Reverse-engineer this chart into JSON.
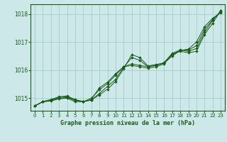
{
  "title": "Graphe pression niveau de la mer (hPa)",
  "background_color": "#cce8e8",
  "grid_color": "#aacccc",
  "line_color": "#1a5c1a",
  "marker_color": "#1a5c1a",
  "xlim": [
    -0.5,
    23.5
  ],
  "ylim": [
    1014.55,
    1018.35
  ],
  "yticks": [
    1015,
    1016,
    1017,
    1018
  ],
  "xticks": [
    0,
    1,
    2,
    3,
    4,
    5,
    6,
    7,
    8,
    9,
    10,
    11,
    12,
    13,
    14,
    15,
    16,
    17,
    18,
    19,
    20,
    21,
    22,
    23
  ],
  "series": [
    [
      1014.72,
      1014.88,
      1014.95,
      1015.05,
      1015.08,
      1014.95,
      1014.88,
      1014.93,
      1015.12,
      1015.32,
      1015.6,
      1016.05,
      1016.55,
      1016.45,
      1016.15,
      1016.2,
      1016.25,
      1016.5,
      1016.7,
      1016.75,
      1017.0,
      1017.55,
      1017.85,
      1018.05
    ],
    [
      1014.72,
      1014.88,
      1014.93,
      1015.02,
      1015.05,
      1014.93,
      1014.88,
      1014.93,
      1015.17,
      1015.42,
      1015.67,
      1016.1,
      1016.45,
      1016.35,
      1016.12,
      1016.17,
      1016.25,
      1016.55,
      1016.7,
      1016.72,
      1016.87,
      1017.45,
      1017.8,
      1018.08
    ],
    [
      1014.72,
      1014.87,
      1014.92,
      1015.0,
      1015.02,
      1014.92,
      1014.87,
      1015.0,
      1015.3,
      1015.52,
      1015.82,
      1016.12,
      1016.22,
      1016.17,
      1016.12,
      1016.17,
      1016.27,
      1016.6,
      1016.72,
      1016.67,
      1016.77,
      1017.35,
      1017.77,
      1018.12
    ],
    [
      1014.72,
      1014.87,
      1014.9,
      1014.97,
      1015.0,
      1014.87,
      1014.88,
      1014.95,
      1015.37,
      1015.57,
      1015.87,
      1016.12,
      1016.17,
      1016.12,
      1016.07,
      1016.12,
      1016.22,
      1016.57,
      1016.67,
      1016.62,
      1016.67,
      1017.27,
      1017.67,
      1018.12
    ]
  ]
}
